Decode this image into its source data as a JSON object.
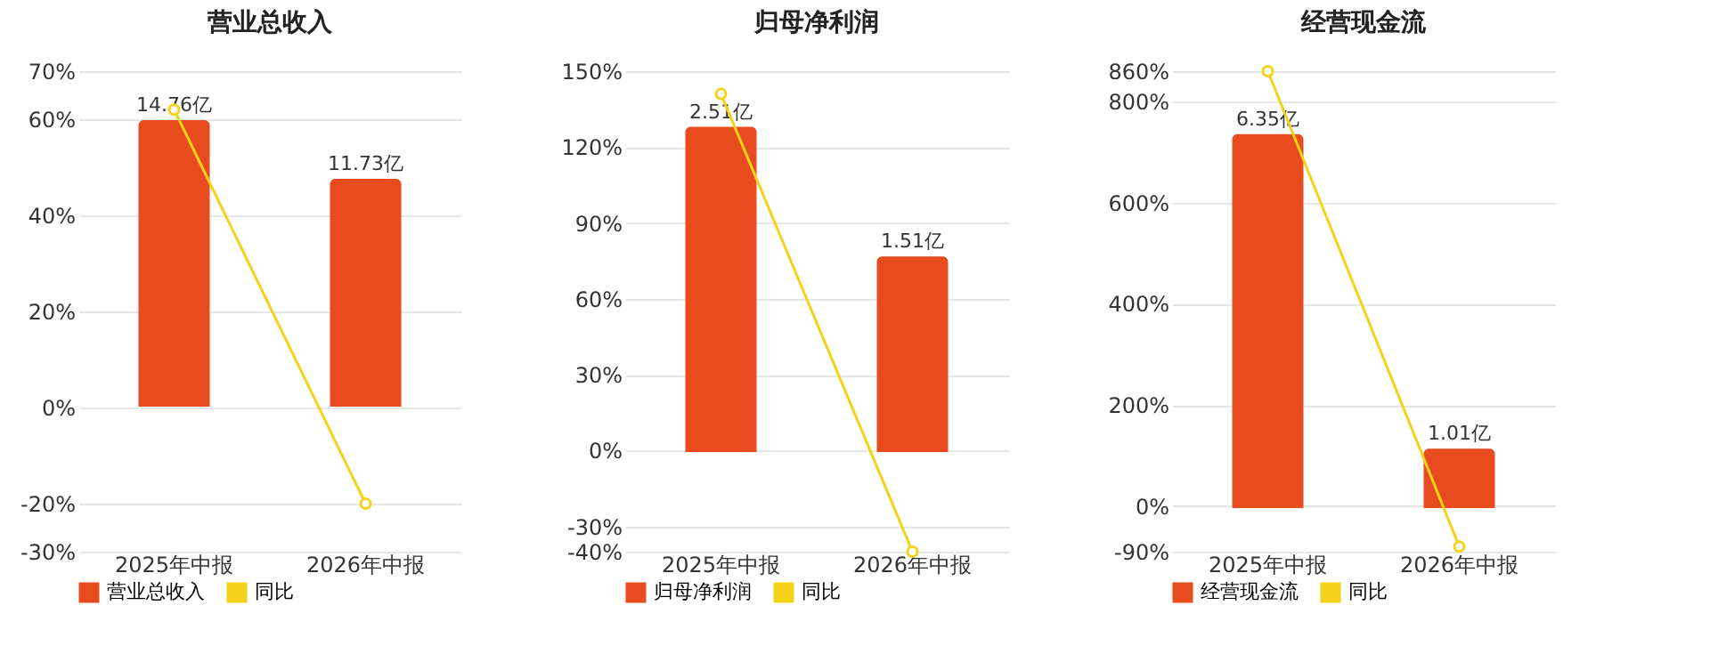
{
  "chart_data": [
    {
      "type": "bar",
      "title": "营业总收入",
      "categories": [
        "2025年中报",
        "2026年中报"
      ],
      "series": [
        {
          "name": "营业总收入",
          "type": "bar",
          "axis": "y2",
          "color": "#e84c1e",
          "values": [
            14.76,
            11.73
          ],
          "value_labels": [
            "14.76亿",
            "11.73亿"
          ]
        },
        {
          "name": "同比",
          "type": "line",
          "color": "#f5d21a",
          "values": [
            62,
            -20
          ]
        }
      ],
      "ylim": [
        -30,
        70
      ],
      "yticks": [
        {
          "value": -30,
          "label": "-30%"
        },
        {
          "value": -20,
          "label": "-20%"
        },
        {
          "value": 0,
          "label": "0%"
        },
        {
          "value": 20,
          "label": "20%"
        },
        {
          "value": 40,
          "label": "40%"
        },
        {
          "value": 60,
          "label": "60%"
        },
        {
          "value": 70,
          "label": "70%"
        }
      ],
      "y2lim": [
        -7.47,
        17.28
      ],
      "tick_labels": "xy",
      "grid": "y",
      "legend": "bottom",
      "marker": "circle",
      "line_style": "solid"
    },
    {
      "type": "bar",
      "title": "归母净利润",
      "categories": [
        "2025年中报",
        "2026年中报"
      ],
      "series": [
        {
          "name": "归母净利润",
          "type": "bar",
          "axis": "y2",
          "color": "#e84c1e",
          "values": [
            2.51,
            1.51
          ],
          "value_labels": [
            "2.51亿",
            "1.51亿"
          ]
        },
        {
          "name": "同比",
          "type": "line",
          "color": "#f5d21a",
          "values": [
            141,
            -40
          ]
        }
      ],
      "ylim": [
        -40,
        150
      ],
      "yticks": [
        {
          "value": -40,
          "label": "-40%"
        },
        {
          "value": -30,
          "label": "-30%"
        },
        {
          "value": 0,
          "label": "0%"
        },
        {
          "value": 30,
          "label": "30%"
        },
        {
          "value": 60,
          "label": "60%"
        },
        {
          "value": 90,
          "label": "90%"
        },
        {
          "value": 120,
          "label": "120%"
        },
        {
          "value": 150,
          "label": "150%"
        }
      ],
      "y2lim": [
        -0.77,
        2.94
      ],
      "tick_labels": "xy",
      "grid": "y",
      "legend": "bottom",
      "marker": "circle",
      "line_style": "solid"
    },
    {
      "type": "bar",
      "title": "经营现金流",
      "categories": [
        "2025年中报",
        "2026年中报"
      ],
      "series": [
        {
          "name": "经营现金流",
          "type": "bar",
          "axis": "y2",
          "color": "#e84c1e",
          "values": [
            6.35,
            1.01
          ],
          "value_labels": [
            "6.35亿",
            "1.01亿"
          ]
        },
        {
          "name": "同比",
          "type": "line",
          "color": "#f5d21a",
          "values": [
            860,
            -80
          ]
        }
      ],
      "ylim": [
        -90,
        860
      ],
      "yticks": [
        {
          "value": -90,
          "label": "-90%"
        },
        {
          "value": 0,
          "label": "0%"
        },
        {
          "value": 200,
          "label": "200%"
        },
        {
          "value": 400,
          "label": "400%"
        },
        {
          "value": 600,
          "label": "600%"
        },
        {
          "value": 800,
          "label": "800%"
        },
        {
          "value": 860,
          "label": "860%"
        }
      ],
      "y2lim": [
        -0.74,
        7.42
      ],
      "tick_labels": "xy",
      "grid": "y",
      "legend": "bottom",
      "marker": "circle",
      "line_style": "solid"
    }
  ]
}
